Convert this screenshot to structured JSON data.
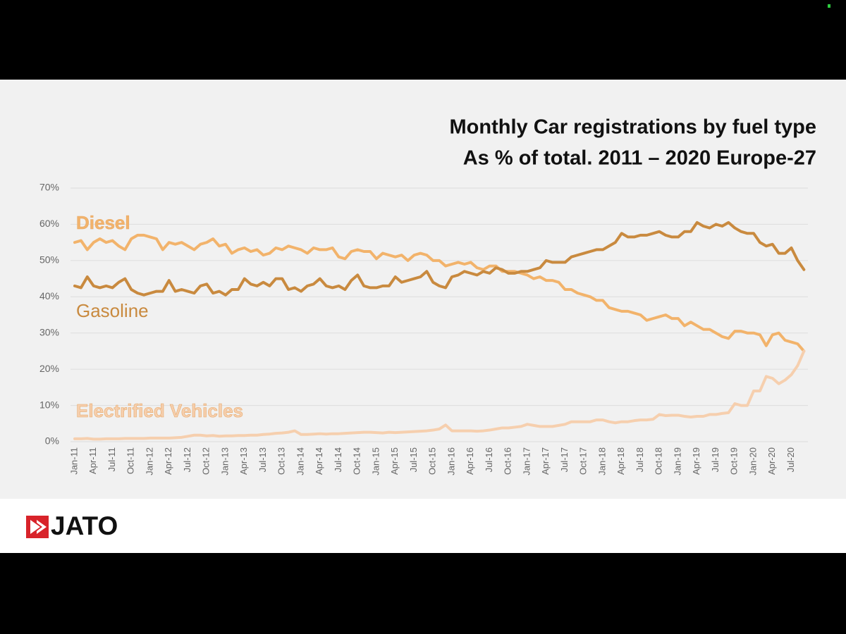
{
  "chart_data": {
    "type": "line",
    "title": "Monthly Car registrations by fuel type",
    "subtitle": "As % of total. 2011 – 2020 Europe-27",
    "categories": [
      "Jan-11",
      null,
      null,
      "Apr-11",
      null,
      null,
      "Jul-11",
      null,
      null,
      "Oct-11",
      null,
      null,
      "Jan-12",
      null,
      null,
      "Apr-12",
      null,
      null,
      "Jul-12",
      null,
      null,
      "Oct-12",
      null,
      null,
      "Jan-13",
      null,
      null,
      "Apr-13",
      null,
      null,
      "Jul-13",
      null,
      null,
      "Oct-13",
      null,
      null,
      "Jan-14",
      null,
      null,
      "Apr-14",
      null,
      null,
      "Jul-14",
      null,
      null,
      "Oct-14",
      null,
      null,
      "Jan-15",
      null,
      null,
      "Apr-15",
      null,
      null,
      "Jul-15",
      null,
      null,
      "Oct-15",
      null,
      null,
      "Jan-16",
      null,
      null,
      "Apr-16",
      null,
      null,
      "Jul-16",
      null,
      null,
      "Oct-16",
      null,
      null,
      "Jan-17",
      null,
      null,
      "Apr-17",
      null,
      null,
      "Jul-17",
      null,
      null,
      "Oct-17",
      null,
      null,
      "Jan-18",
      null,
      null,
      "Apr-18",
      null,
      null,
      "Jul-18",
      null,
      null,
      "Oct-18",
      null,
      null,
      "Jan-19",
      null,
      null,
      "Apr-19",
      null,
      null,
      "Jul-19",
      null,
      null,
      "Oct-19",
      null,
      null,
      "Jan-20",
      null,
      null,
      "Apr-20",
      null,
      null,
      "Jul-20",
      null,
      null
    ],
    "series": [
      {
        "name": "Diesel",
        "color": "#f2b36b",
        "values": [
          55,
          55.5,
          53,
          55,
          56,
          55,
          55.5,
          54,
          53,
          56,
          57,
          57,
          56.5,
          56,
          53,
          55,
          54.5,
          55,
          54,
          53,
          54.5,
          55,
          56,
          54,
          54.5,
          52,
          53,
          53.5,
          52.5,
          53,
          51.5,
          52,
          53.5,
          53,
          54,
          53.5,
          53,
          52,
          53.5,
          53,
          53,
          53.5,
          51,
          50.5,
          52.5,
          53,
          52.5,
          52.5,
          50.5,
          52,
          51.5,
          51,
          51.5,
          50,
          51.5,
          52,
          51.5,
          50,
          50,
          48.5,
          49,
          49.5,
          49,
          49.5,
          48,
          47.5,
          48.5,
          48.5,
          47,
          47,
          47,
          46.5,
          46,
          45,
          45.5,
          44.5,
          44.5,
          44,
          42,
          42,
          41,
          40.5,
          40,
          39,
          39,
          37,
          36.5,
          36,
          36,
          35.5,
          35,
          33.5,
          34,
          34.5,
          35,
          34,
          34,
          32,
          33,
          32,
          31,
          31,
          30,
          29,
          28.5,
          30.5,
          30.5,
          30,
          30,
          29.5,
          26.5,
          29.5,
          30,
          28,
          27.5,
          27,
          25
        ]
      },
      {
        "name": "Gasoline",
        "color": "#c98a3f",
        "values": [
          43,
          42.5,
          45.5,
          43,
          42.5,
          43,
          42.5,
          44,
          45,
          42,
          41,
          40.5,
          41,
          41.5,
          41.5,
          44.5,
          41.5,
          42,
          41.5,
          41,
          43,
          43.5,
          41,
          41.5,
          40.5,
          42,
          42,
          45,
          43.5,
          43,
          44,
          43,
          45,
          45,
          42,
          42.5,
          41.5,
          43,
          43.5,
          45,
          43,
          42.5,
          43,
          42,
          44.5,
          46,
          43,
          42.5,
          42.5,
          43,
          43,
          45.5,
          44,
          44.5,
          45,
          45.5,
          47,
          44,
          43,
          42.5,
          45.5,
          46,
          47,
          46.5,
          46,
          47,
          46.5,
          48,
          47.5,
          46.5,
          46.5,
          47,
          47,
          47.5,
          48,
          50,
          49.5,
          49.5,
          49.5,
          51,
          51.5,
          52,
          52.5,
          53,
          53,
          54,
          55,
          57.5,
          56.5,
          56.5,
          57,
          57,
          57.5,
          58,
          57,
          56.5,
          56.5,
          58,
          58,
          60.5,
          59.5,
          59,
          60,
          59.5,
          60.5,
          59,
          58,
          57.5,
          57.5,
          55,
          54,
          54.5,
          52,
          52,
          53.5,
          50,
          47.5
        ]
      },
      {
        "name": "Electrified Vehicles",
        "color": "#f6cfae",
        "values": [
          0.8,
          0.8,
          0.9,
          0.7,
          0.7,
          0.8,
          0.8,
          0.8,
          0.9,
          0.9,
          0.9,
          0.9,
          1,
          1,
          1,
          1,
          1.1,
          1.2,
          1.5,
          1.8,
          1.8,
          1.6,
          1.7,
          1.5,
          1.6,
          1.6,
          1.7,
          1.7,
          1.8,
          1.8,
          2,
          2.1,
          2.3,
          2.4,
          2.6,
          3,
          2,
          2,
          2.1,
          2.2,
          2.1,
          2.2,
          2.2,
          2.3,
          2.4,
          2.5,
          2.6,
          2.6,
          2.5,
          2.4,
          2.6,
          2.5,
          2.6,
          2.7,
          2.8,
          2.9,
          3,
          3.2,
          3.5,
          4.6,
          3,
          3,
          3,
          3,
          2.9,
          3,
          3.2,
          3.5,
          3.8,
          3.8,
          4,
          4.2,
          4.8,
          4.5,
          4.2,
          4.2,
          4.2,
          4.5,
          4.8,
          5.5,
          5.5,
          5.5,
          5.5,
          6,
          6,
          5.5,
          5.2,
          5.5,
          5.5,
          5.8,
          6,
          6,
          6.2,
          7.5,
          7.2,
          7.3,
          7.3,
          7,
          6.8,
          7,
          7,
          7.5,
          7.5,
          7.8,
          8,
          10.5,
          10,
          10,
          14,
          14,
          18,
          17.5,
          16,
          17,
          18.5,
          21,
          25
        ]
      }
    ],
    "ylim": [
      0,
      70
    ],
    "yticks": [
      {
        "value": 0,
        "label": "0%"
      },
      {
        "value": 10,
        "label": "10%"
      },
      {
        "value": 20,
        "label": "20%"
      },
      {
        "value": 30,
        "label": "30%"
      },
      {
        "value": 40,
        "label": "40%"
      },
      {
        "value": 50,
        "label": "50%"
      },
      {
        "value": 60,
        "label": "60%"
      },
      {
        "value": 70,
        "label": "70%"
      }
    ],
    "grid": true
  },
  "footer": {
    "logo": "JATO"
  }
}
